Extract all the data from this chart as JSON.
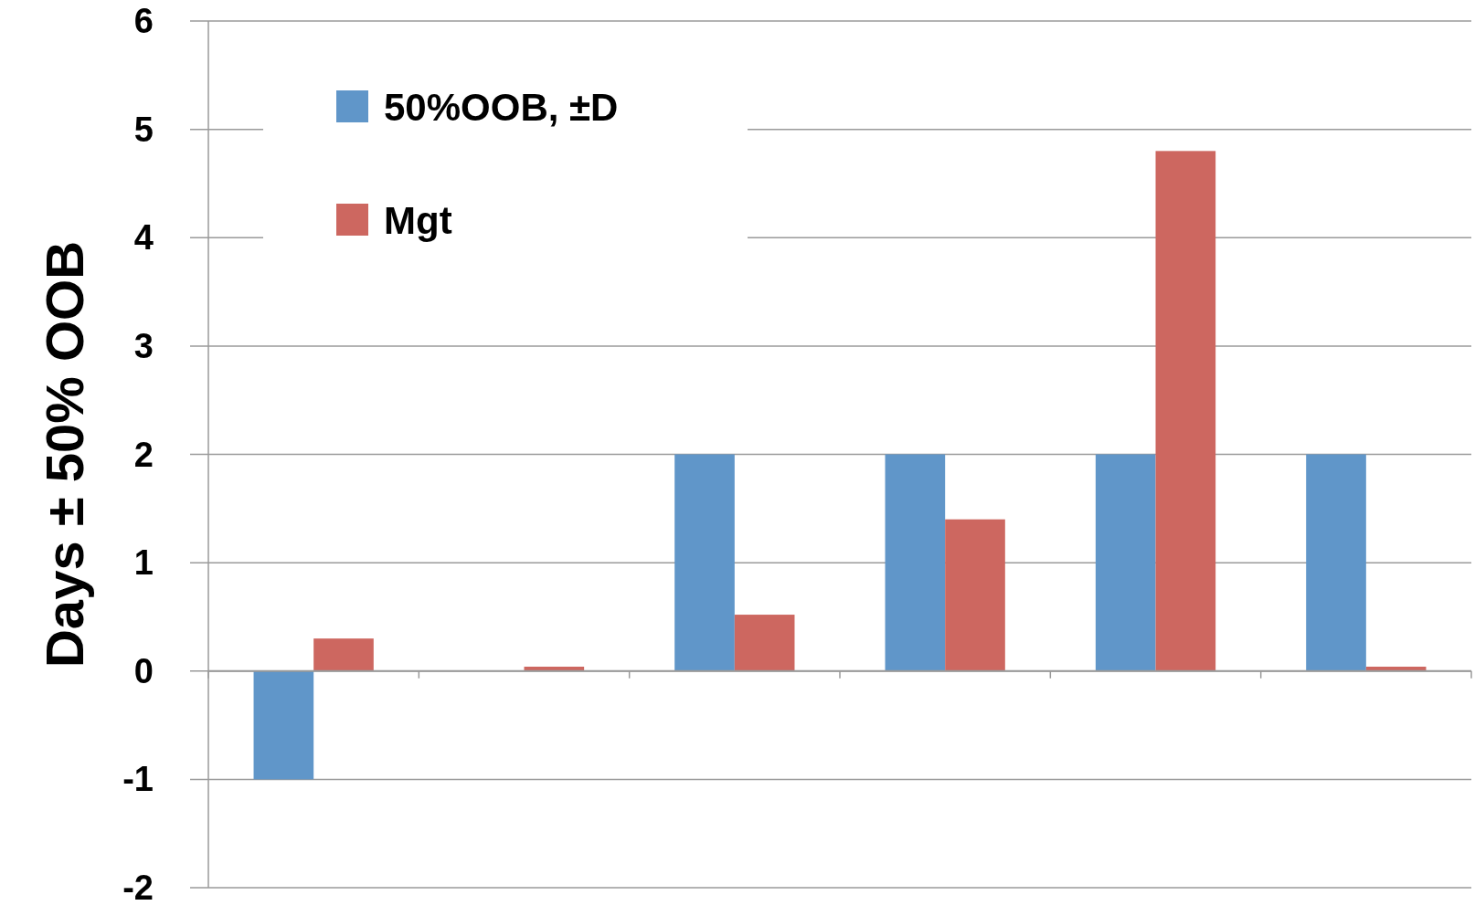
{
  "chart_data": {
    "type": "bar",
    "ylabel": "Days  ± 50% OOB",
    "categories": [
      null,
      null,
      null,
      null,
      null,
      null
    ],
    "series": [
      {
        "name": "50%OOB, ±D",
        "color": "#6096c9",
        "values": [
          -1,
          0,
          2,
          2,
          2,
          2
        ]
      },
      {
        "name": "Mgt",
        "color": "#cd6760",
        "values": [
          0.3,
          0.04,
          0.52,
          1.4,
          4.8,
          0.04
        ]
      }
    ],
    "ylim": [
      -2,
      6
    ],
    "yticks": [
      -2,
      -1,
      0,
      1,
      2,
      3,
      4,
      5,
      6
    ],
    "grid": "y",
    "legend": "top left"
  }
}
